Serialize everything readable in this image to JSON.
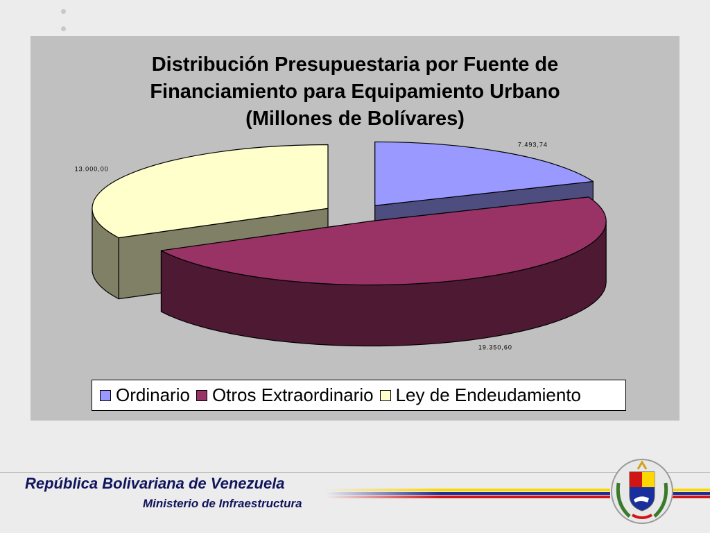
{
  "chart_data": {
    "type": "pie",
    "title_lines": [
      "Distribución Presupuestaria por Fuente de",
      "Financiamiento para Equipamiento Urbano",
      "(Millones de Bolívares)"
    ],
    "categories": [
      "Ordinario",
      "Otros Extraordinario",
      "Ley de Endeudamiento"
    ],
    "values": [
      7493.74,
      19350.6,
      13000.0
    ],
    "value_labels": [
      "7.493,74",
      "19.350,60",
      "13.000,00"
    ],
    "legend_position": "bottom",
    "colors": {
      "Ordinario": "#9999ff",
      "Otros Extraordinario": "#993366",
      "Ley de Endeudamiento": "#ffffcc"
    },
    "colors_side": {
      "Ordinario": "#4d4d80",
      "Otros Extraordinario": "#4d1933",
      "Ley de Endeudamiento": "#808066"
    }
  },
  "colors": {
    "panel_background": "#c0c0c0",
    "page_background": "#ececec",
    "footer_text": "#10155c",
    "flag_yellow": "#ffd700",
    "flag_blue": "#1a2f9e",
    "flag_red": "#d01515"
  },
  "footer": {
    "title": "República Bolivariana de Venezuela",
    "subtitle": "Ministerio de Infraestructura",
    "emblem_icon": "coat-of-arms-icon"
  }
}
